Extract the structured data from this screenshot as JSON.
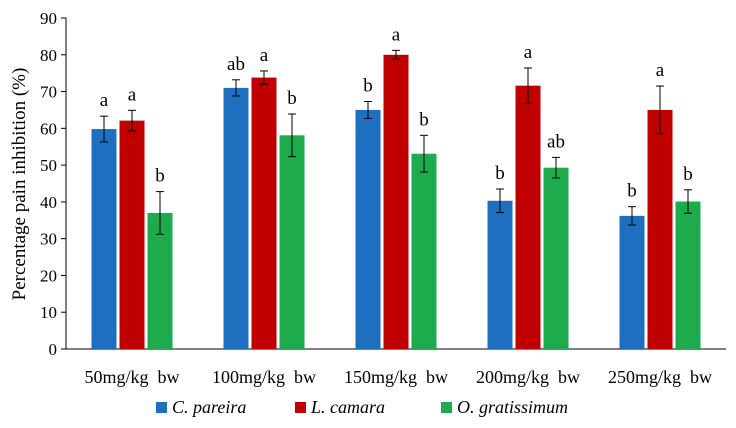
{
  "chart_data": {
    "type": "bar",
    "title": "",
    "xlabel": "",
    "ylabel": "Percentage pain inhibition (%)",
    "ylim": [
      0,
      90
    ],
    "yticks": [
      0,
      10,
      20,
      30,
      40,
      50,
      60,
      70,
      80,
      90
    ],
    "grid": false,
    "legend_position": "bottom",
    "categories": [
      "50mg/kg  bw",
      "100mg/kg  bw",
      "150mg/kg  bw",
      "200mg/kg  bw",
      "250mg/kg  bw"
    ],
    "series": [
      {
        "name": "C. pareira",
        "color": "#1f6fc0",
        "values": [
          59.8,
          71.0,
          65.0,
          40.3,
          36.2
        ],
        "errors": [
          3.5,
          2.2,
          2.3,
          3.2,
          2.5
        ],
        "significance": [
          "a",
          "ab",
          "b",
          "b",
          "b"
        ]
      },
      {
        "name": "L. camara",
        "color": "#c00000",
        "values": [
          62.1,
          73.8,
          80.0,
          71.6,
          65.0
        ],
        "errors": [
          2.8,
          1.8,
          1.2,
          4.8,
          6.5
        ],
        "significance": [
          "a",
          "a",
          "a",
          "a",
          "a"
        ]
      },
      {
        "name": "O. gratissimum",
        "color": "#1eab4e",
        "values": [
          37.0,
          58.1,
          53.1,
          49.3,
          40.1
        ],
        "errors": [
          5.8,
          5.8,
          5.0,
          2.8,
          3.2
        ],
        "significance": [
          "b",
          "b",
          "b",
          "ab",
          "b"
        ]
      }
    ]
  }
}
